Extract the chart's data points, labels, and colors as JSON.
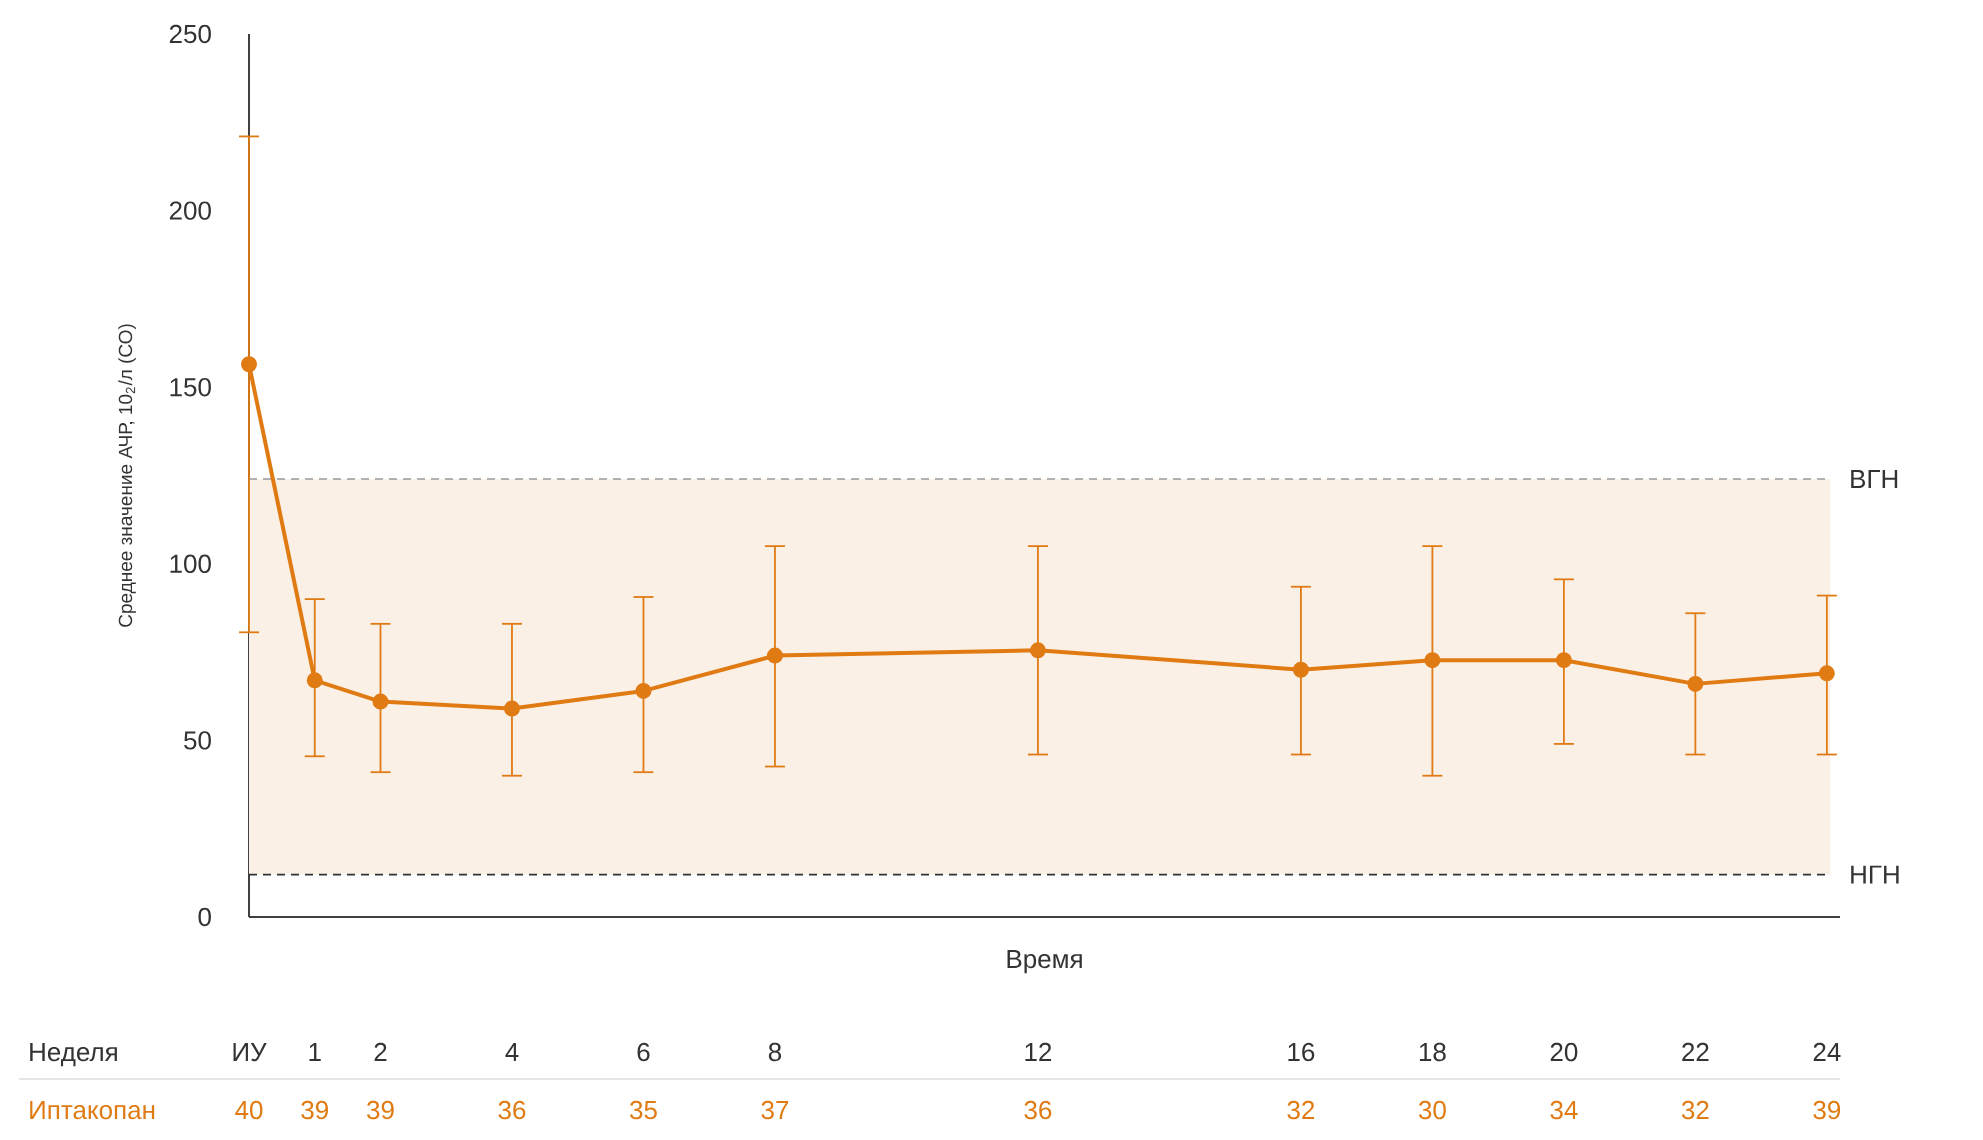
{
  "chart_data": {
    "type": "line",
    "xlabel": "Время",
    "ylabel": "Среднее значение АЧР, 10$_{2}$/л (СО)",
    "x": [
      0,
      1,
      2,
      4,
      6,
      8,
      12,
      16,
      18,
      20,
      22,
      24
    ],
    "series": [
      {
        "name": "Иптакопан",
        "color": "#e07b14",
        "values": [
          156.5,
          67,
          61,
          59,
          64,
          74,
          75.5,
          70,
          72.7,
          72.7,
          66,
          69
        ],
        "errors": [
          [
            80.6,
            221
          ],
          [
            45.5,
            90
          ],
          [
            41,
            83
          ],
          [
            40,
            83
          ],
          [
            41,
            90.6
          ],
          [
            42.6,
            105
          ],
          [
            46,
            105
          ],
          [
            46,
            93.5
          ],
          [
            40,
            105
          ],
          [
            49,
            95.6
          ],
          [
            46,
            86
          ],
          [
            46,
            91
          ]
        ]
      }
    ],
    "marker": "circle",
    "line_style": "solid",
    "grid": false,
    "xlim": [
      0,
      24.2
    ],
    "xticks": [
      {
        "value": 0,
        "label": "ИУ"
      },
      1,
      2,
      4,
      6,
      8,
      12,
      16,
      18,
      20,
      22,
      24
    ],
    "ylim": [
      0,
      250
    ],
    "yticks": [
      0,
      50,
      100,
      150,
      200,
      250
    ],
    "ref_lines": [
      {
        "axis": "y",
        "value": 124,
        "label": "ВГН",
        "color": "#999999",
        "line_style": "dashed"
      },
      {
        "axis": "y",
        "value": 12,
        "label": "НГН",
        "color": "#333333",
        "line_style": "dashed"
      }
    ],
    "bands": [
      {
        "axis": "y",
        "from": 12,
        "to": 124,
        "color": "#fbf0e6"
      }
    ],
    "annotations": [
      "Неделя",
      "40",
      "39",
      "39",
      "36",
      "35",
      "37",
      "36",
      "32",
      "30",
      "34",
      "32",
      "39"
    ]
  }
}
